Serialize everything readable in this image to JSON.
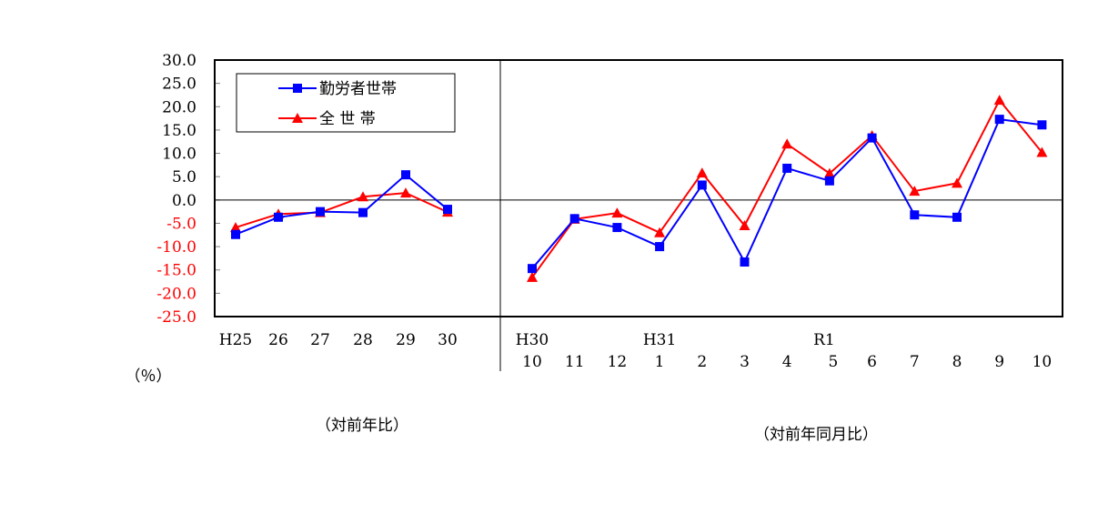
{
  "chart_data": {
    "type": "line",
    "ylim": [
      -25,
      30
    ],
    "ytick_step": 5,
    "yticks": [
      "30.0",
      "25.0",
      "20.0",
      "15.0",
      "10.0",
      "5.0",
      "0.0",
      "-5.0",
      "-10.0",
      "-15.0",
      "-20.0",
      "-25.0"
    ],
    "ylabel": "（％）",
    "negative_tick_color": "#ff0000",
    "grid": false,
    "legend": {
      "position": "top-left"
    },
    "panels": [
      {
        "caption": "（対前年比）",
        "categories": [
          "H25",
          "26",
          "27",
          "28",
          "29",
          "30"
        ],
        "category_rows": [
          [
            "H25",
            "26",
            "27",
            "28",
            "29",
            "30"
          ]
        ],
        "series": [
          {
            "name": "勤労者世帯",
            "color": "#0000ff",
            "marker": "square",
            "values": [
              -7.4,
              -3.7,
              -2.5,
              -2.7,
              5.4,
              -2.0
            ]
          },
          {
            "name": "全 世 帯",
            "color": "#ff0000",
            "marker": "triangle",
            "values": [
              -5.9,
              -3.0,
              -2.7,
              0.7,
              1.5,
              -2.6
            ]
          }
        ]
      },
      {
        "caption": "（対前年同月比）",
        "categories": [
          "H30 10",
          "11",
          "12",
          "H31 1",
          "2",
          "3",
          "4",
          "R1 5",
          "6",
          "7",
          "8",
          "9",
          "10"
        ],
        "era_labels": [
          "H30",
          "",
          "",
          "H31",
          "",
          "",
          "",
          "R1",
          "",
          "",
          "",
          "",
          ""
        ],
        "month_labels": [
          "10",
          "11",
          "12",
          "1",
          "2",
          "3",
          "4",
          "5",
          "6",
          "7",
          "8",
          "9",
          "10"
        ],
        "series": [
          {
            "name": "勤労者世帯",
            "color": "#0000ff",
            "marker": "square",
            "values": [
              -14.7,
              -4.0,
              -5.9,
              -10.0,
              3.2,
              -13.3,
              6.8,
              4.1,
              13.3,
              -3.2,
              -3.7,
              17.3,
              16.1
            ]
          },
          {
            "name": "全 世 帯",
            "color": "#ff0000",
            "marker": "triangle",
            "values": [
              -16.6,
              -4.1,
              -2.8,
              -7.0,
              5.8,
              -5.5,
              12.0,
              5.7,
              13.8,
              1.9,
              3.6,
              21.4,
              10.2
            ]
          }
        ]
      }
    ]
  }
}
